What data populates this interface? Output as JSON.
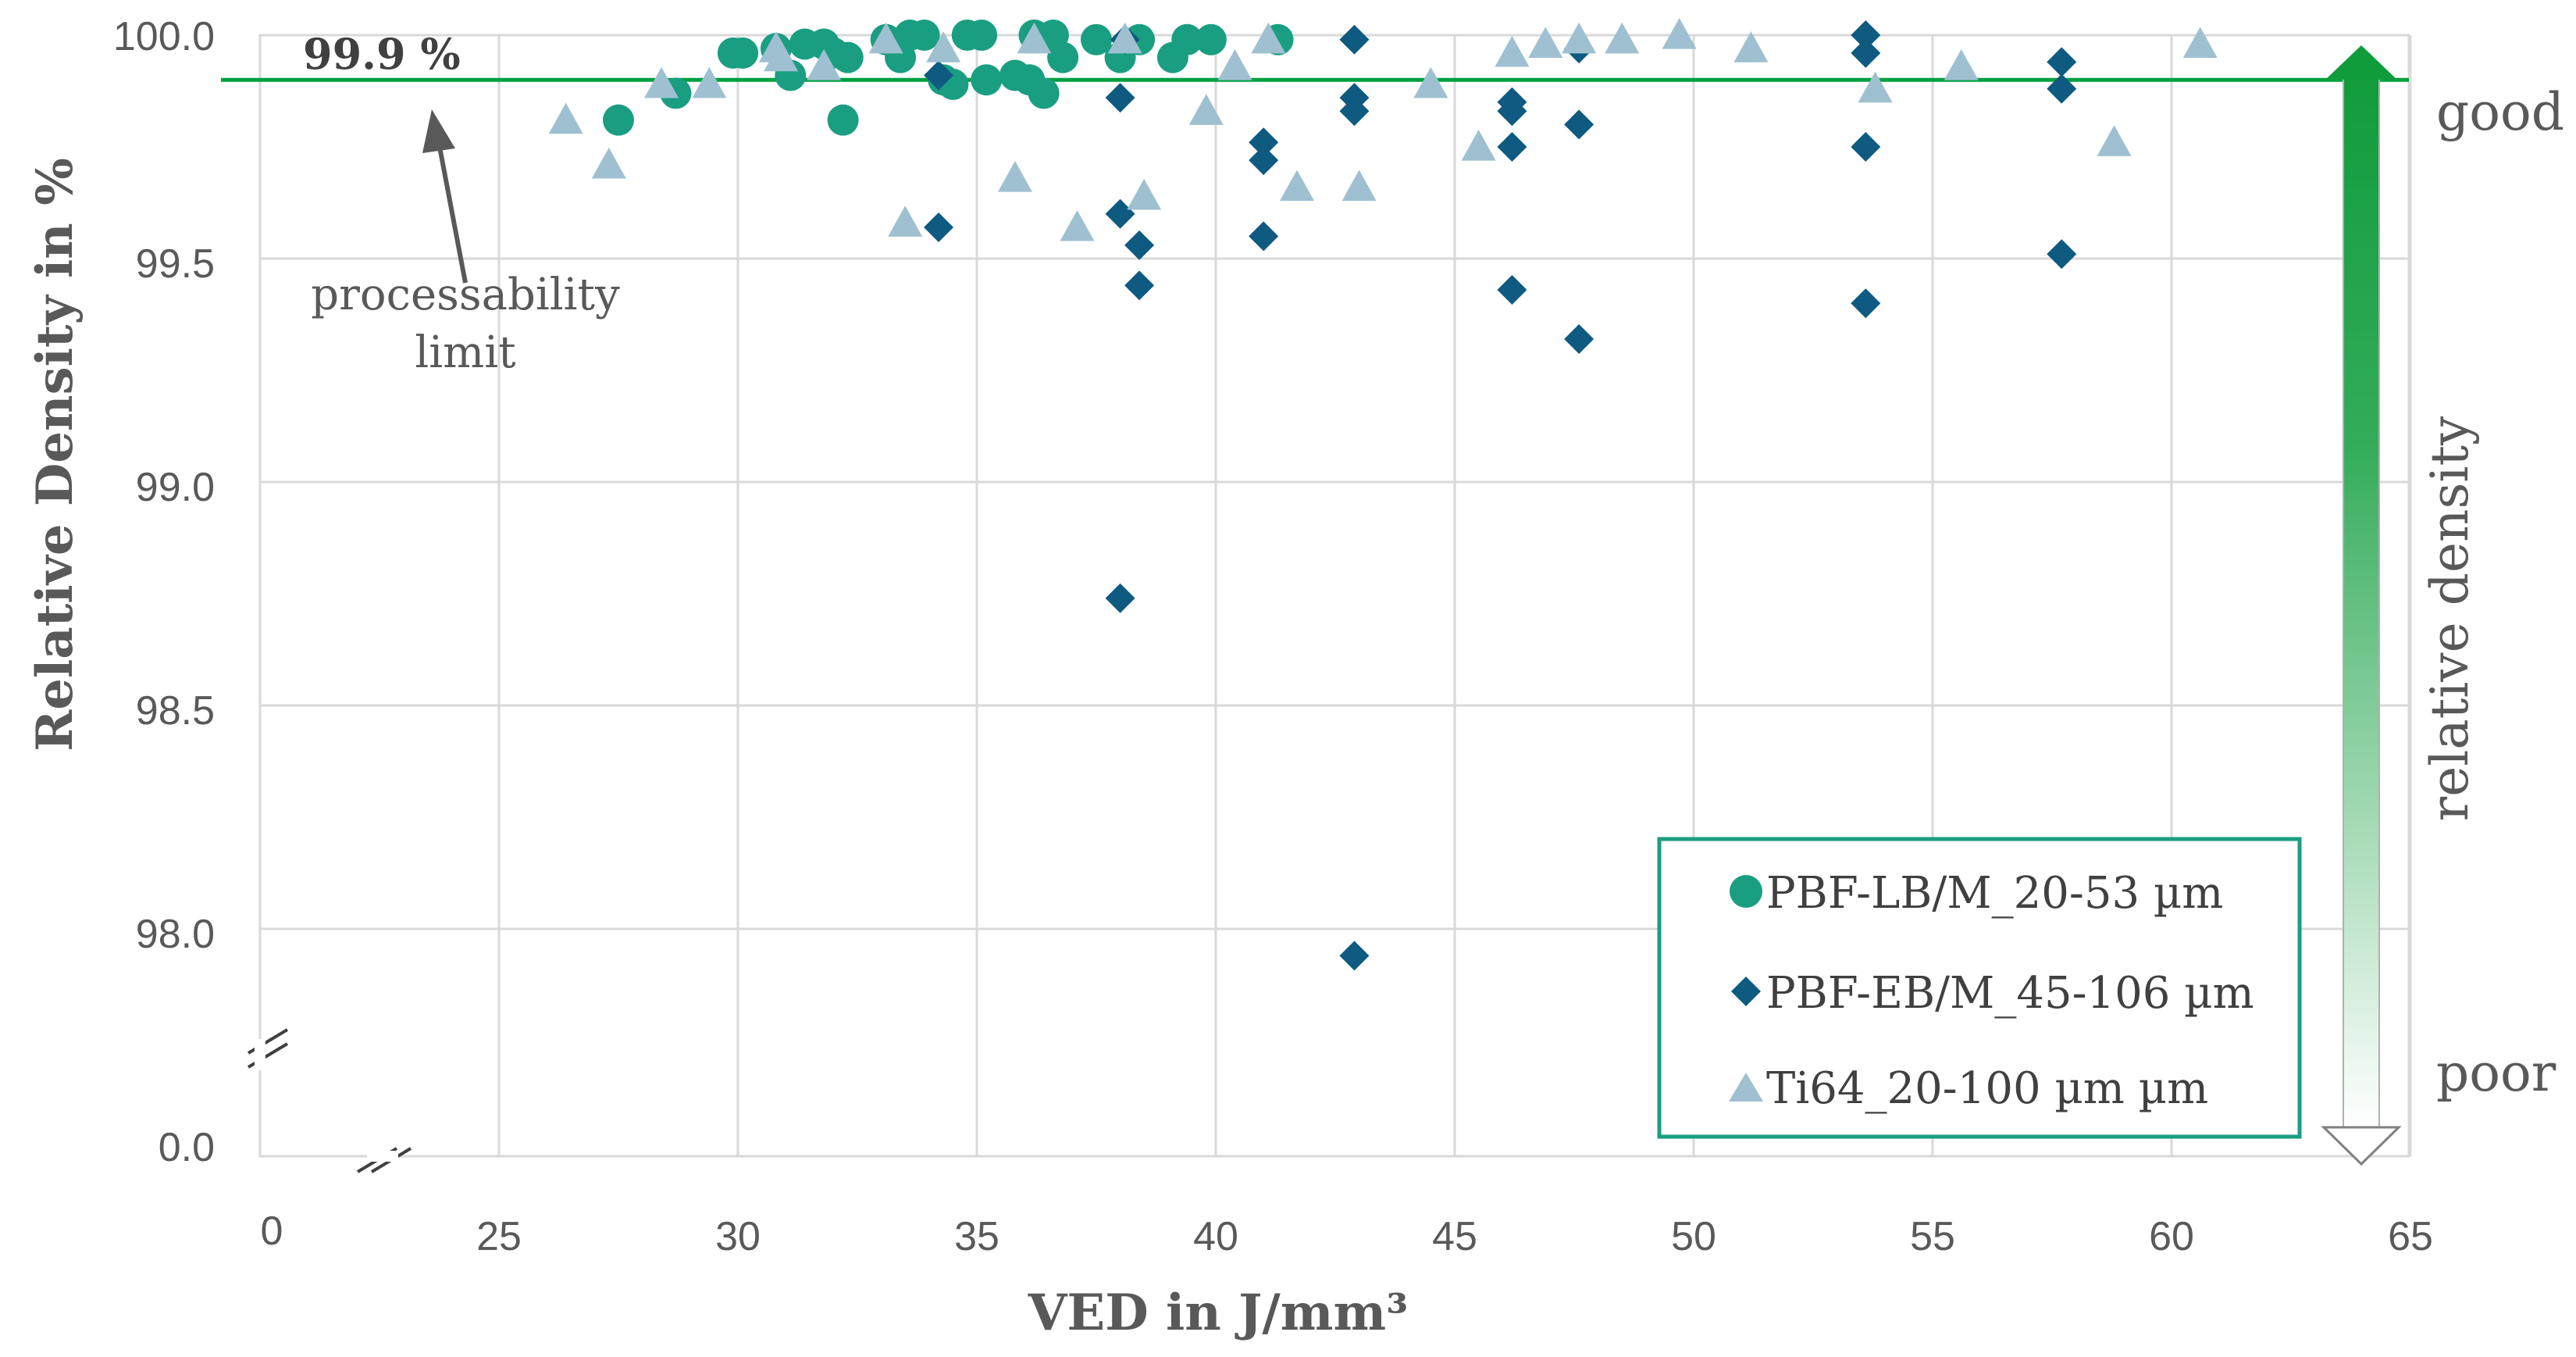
{
  "chart_data": {
    "type": "scatter",
    "title": "",
    "xlabel": "VED in J/mm³",
    "ylabel": "Relative Density in %",
    "xlim": [
      20,
      65
    ],
    "ylim_upper_segment": [
      97.5,
      100.0
    ],
    "y_break_value": 0.0,
    "x_break_origin": 0,
    "x_ticks": [
      "0",
      "25",
      "30",
      "35",
      "40",
      "45",
      "50",
      "55",
      "60",
      "65"
    ],
    "y_ticks": [
      "100.0",
      "99.5",
      "99.0",
      "98.5",
      "98.0",
      "0.0"
    ],
    "grid": true,
    "legend_position": "bottom-right",
    "threshold": {
      "value": 99.9,
      "label": "99.9  %",
      "color": "#00a040"
    },
    "annotation": {
      "line1": "processability",
      "line2": "limit"
    },
    "side_scale": {
      "top_label": "good",
      "bottom_label": "poor",
      "axis_label": "relative density"
    },
    "series": [
      {
        "name": "PBF-LB/M_20-53 µm",
        "marker": "circle",
        "color": "#1a9e82",
        "points": [
          [
            27.5,
            99.81
          ],
          [
            28.7,
            99.87
          ],
          [
            29.9,
            99.96
          ],
          [
            30.1,
            99.96
          ],
          [
            30.8,
            99.97
          ],
          [
            31.1,
            99.91
          ],
          [
            31.4,
            99.98
          ],
          [
            31.8,
            99.98
          ],
          [
            32.0,
            99.96
          ],
          [
            32.2,
            99.81
          ],
          [
            32.3,
            99.95
          ],
          [
            33.1,
            99.99
          ],
          [
            33.4,
            99.95
          ],
          [
            33.6,
            100.0
          ],
          [
            33.9,
            100.0
          ],
          [
            34.3,
            99.9
          ],
          [
            34.5,
            99.89
          ],
          [
            34.8,
            100.0
          ],
          [
            35.1,
            100.0
          ],
          [
            35.2,
            99.9
          ],
          [
            35.8,
            99.91
          ],
          [
            36.1,
            99.9
          ],
          [
            36.2,
            100.0
          ],
          [
            36.4,
            99.87
          ],
          [
            36.6,
            100.0
          ],
          [
            36.8,
            99.95
          ],
          [
            37.5,
            99.99
          ],
          [
            38.0,
            99.95
          ],
          [
            38.4,
            99.99
          ],
          [
            39.1,
            99.95
          ],
          [
            39.4,
            99.99
          ],
          [
            39.9,
            99.99
          ],
          [
            41.3,
            99.99
          ]
        ]
      },
      {
        "name": "PBF-EB/M_45-106 µm",
        "marker": "diamond",
        "color": "#0e5a80",
        "points": [
          [
            34.2,
            99.91
          ],
          [
            34.2,
            99.57
          ],
          [
            38.0,
            99.86
          ],
          [
            38.0,
            99.6
          ],
          [
            38.0,
            98.74
          ],
          [
            38.1,
            99.99
          ],
          [
            38.4,
            99.53
          ],
          [
            38.4,
            99.44
          ],
          [
            41.0,
            99.76
          ],
          [
            41.0,
            99.72
          ],
          [
            41.0,
            99.55
          ],
          [
            42.9,
            99.99
          ],
          [
            42.9,
            99.86
          ],
          [
            42.9,
            99.83
          ],
          [
            42.9,
            97.94
          ],
          [
            46.2,
            99.85
          ],
          [
            46.2,
            99.83
          ],
          [
            46.2,
            99.75
          ],
          [
            46.2,
            99.43
          ],
          [
            47.6,
            99.97
          ],
          [
            47.6,
            99.8
          ],
          [
            47.6,
            99.32
          ],
          [
            53.6,
            100.0
          ],
          [
            53.6,
            99.96
          ],
          [
            53.6,
            99.75
          ],
          [
            53.6,
            99.4
          ],
          [
            57.7,
            99.94
          ],
          [
            57.7,
            99.88
          ],
          [
            57.7,
            99.51
          ]
        ]
      },
      {
        "name": "Ti64_20-100 µm µm",
        "marker": "triangle",
        "color": "#9fc0d0",
        "points": [
          [
            26.4,
            99.81
          ],
          [
            27.3,
            99.71
          ],
          [
            28.4,
            99.89
          ],
          [
            29.4,
            99.89
          ],
          [
            30.8,
            99.97
          ],
          [
            30.9,
            99.95
          ],
          [
            31.8,
            99.93
          ],
          [
            33.1,
            99.99
          ],
          [
            33.5,
            99.58
          ],
          [
            34.3,
            99.97
          ],
          [
            35.8,
            99.68
          ],
          [
            36.2,
            99.99
          ],
          [
            37.1,
            99.57
          ],
          [
            38.1,
            99.99
          ],
          [
            38.5,
            99.64
          ],
          [
            39.8,
            99.83
          ],
          [
            40.4,
            99.93
          ],
          [
            41.1,
            99.99
          ],
          [
            41.7,
            99.66
          ],
          [
            43.0,
            99.66
          ],
          [
            44.5,
            99.89
          ],
          [
            45.5,
            99.75
          ],
          [
            46.2,
            99.96
          ],
          [
            46.9,
            99.98
          ],
          [
            47.6,
            99.99
          ],
          [
            48.5,
            99.99
          ],
          [
            49.7,
            100.0
          ],
          [
            51.2,
            99.97
          ],
          [
            53.8,
            99.88
          ],
          [
            55.6,
            99.93
          ],
          [
            58.8,
            99.76
          ],
          [
            60.6,
            99.98
          ]
        ]
      }
    ]
  }
}
